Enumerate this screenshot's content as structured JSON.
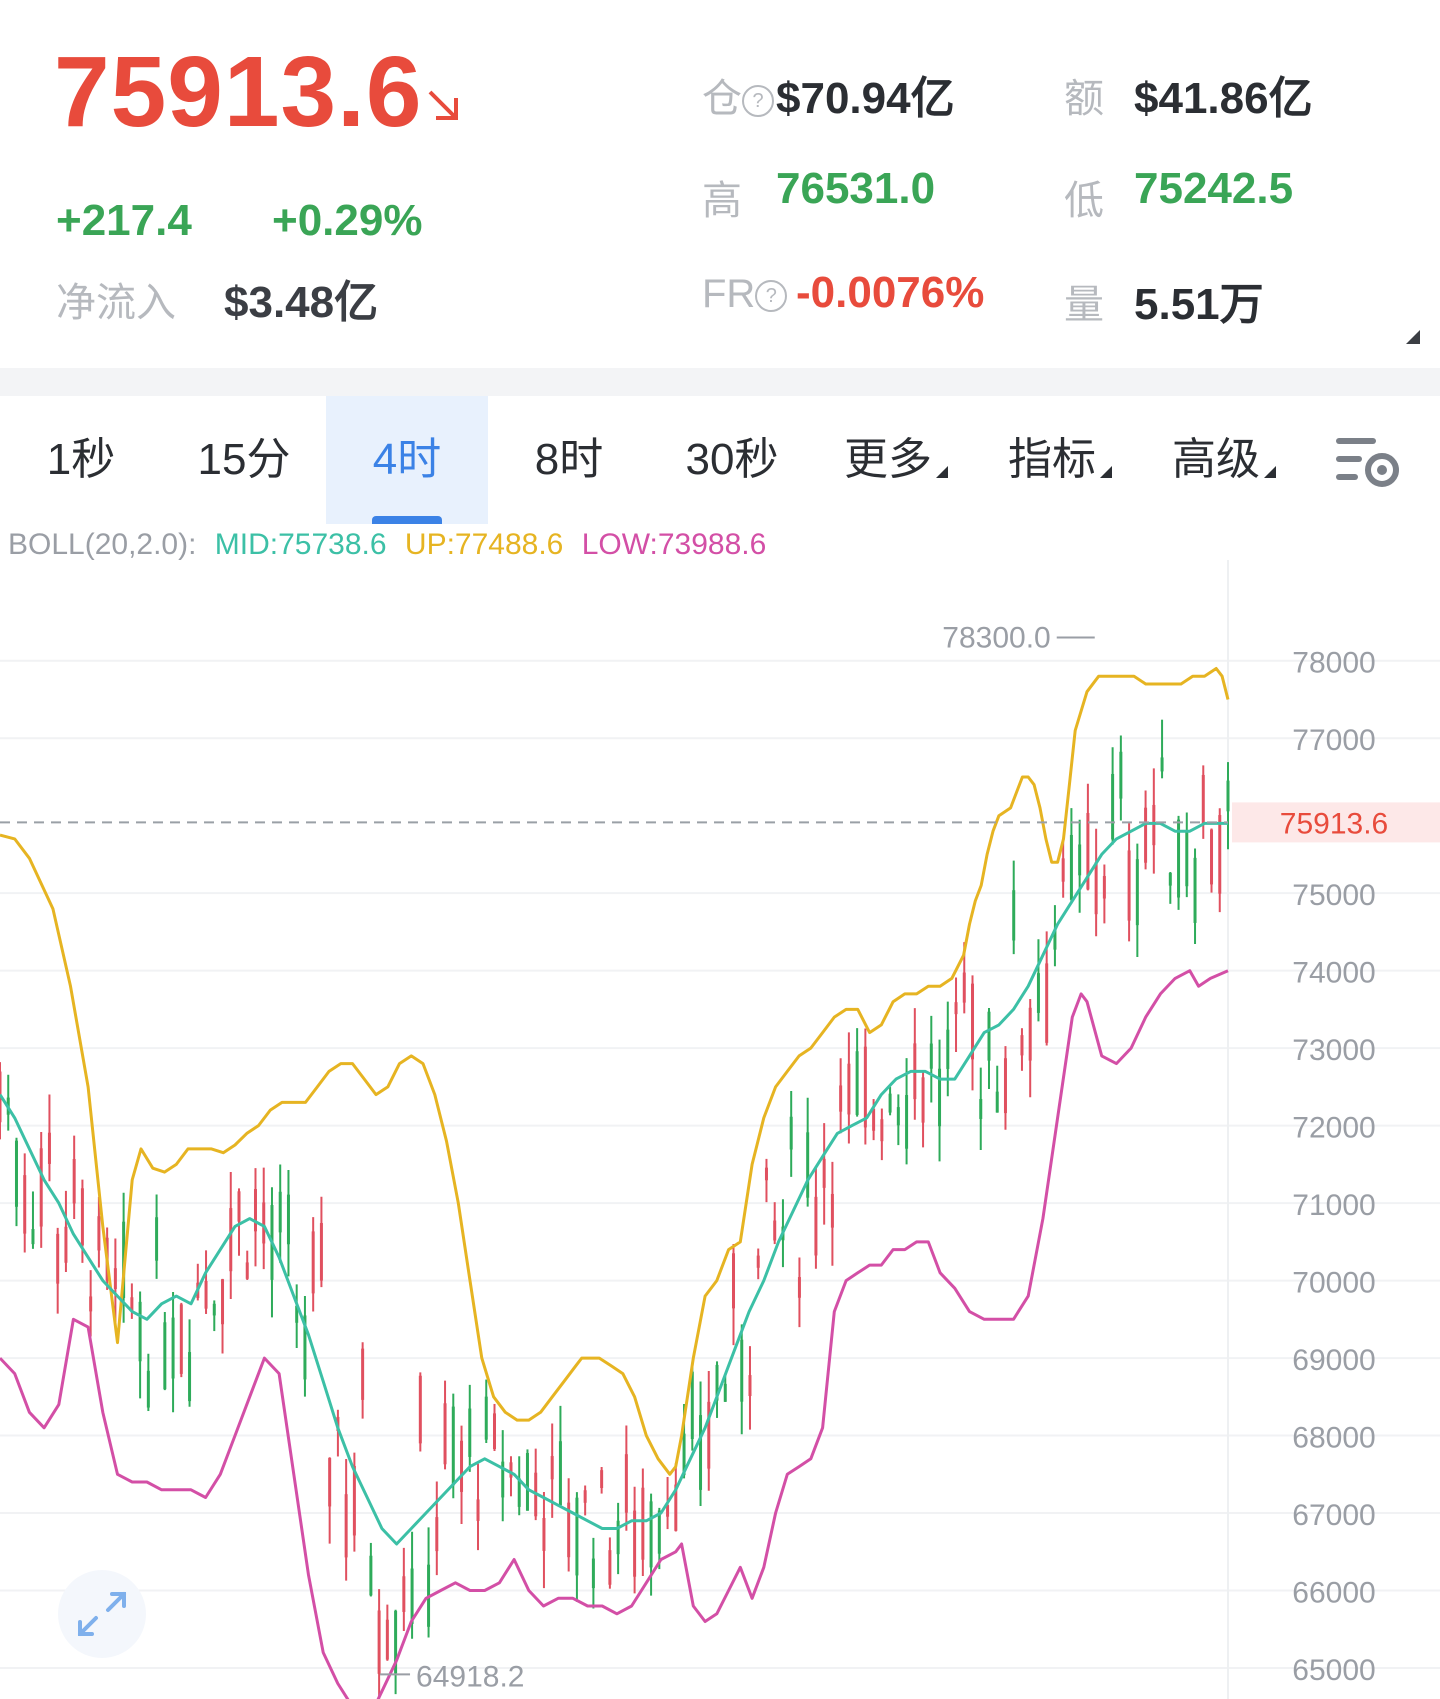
{
  "ticker": {
    "price": "75913.6",
    "change_abs": "+217.4",
    "change_pct": "+0.29%",
    "net_inflow_label": "净流入",
    "net_inflow_value": "$3.48亿",
    "direction_icon": "down-right-arrow-icon",
    "colors": {
      "up": "#3aa556",
      "down": "#e84b3c",
      "label": "#b6b9be"
    }
  },
  "stats": {
    "open_interest_label": "仓",
    "open_interest_value": "$70.94亿",
    "turnover_label": "额",
    "turnover_value": "$41.86亿",
    "high_label": "高",
    "high_value": "76531.0",
    "low_label": "低",
    "low_value": "75242.5",
    "funding_label": "FR",
    "funding_value": "-0.0076%",
    "volume_label": "量",
    "volume_value": "5.51万"
  },
  "tabs": [
    {
      "label": "1秒",
      "active": false
    },
    {
      "label": "15分",
      "active": false
    },
    {
      "label": "4时",
      "active": true
    },
    {
      "label": "8时",
      "active": false
    },
    {
      "label": "30秒",
      "active": false
    },
    {
      "label": "更多",
      "active": false,
      "dropdown": true
    },
    {
      "label": "指标",
      "active": false,
      "dropdown": true
    },
    {
      "label": "高级",
      "active": false,
      "dropdown": true
    }
  ],
  "boll": {
    "params": "BOLL(20,2.0):",
    "mid": "MID:75738.6",
    "up": "UP:77488.6",
    "low": "LOW:73988.6",
    "colors": {
      "params": "#9a9ea5",
      "mid": "#3cc0a6",
      "up": "#e6b422",
      "low": "#d34fa6"
    }
  },
  "chart_data": {
    "type": "candlestick",
    "y_ticks": [
      78000,
      77000,
      75000,
      74000,
      73000,
      72000,
      71000,
      70000,
      69000,
      68000,
      67000,
      66000,
      65000
    ],
    "ylim": [
      64600,
      79300
    ],
    "current_price": 75913.6,
    "current_price_label": "75913.6",
    "max_marker": {
      "value": 78300.0,
      "label": "78300.0"
    },
    "min_marker": {
      "value": 64918.2,
      "label": "64918.2"
    },
    "colors": {
      "up": "#2eab5a",
      "down": "#e0505f",
      "mid": "#3cc0a6",
      "upper": "#e6b422",
      "lower": "#d34fa6",
      "price_line": "#9aa0a6",
      "price_tag_bg": "#fde8e8",
      "price_tag_text": "#e84b3c"
    },
    "upper_band": [
      [
        0,
        75750
      ],
      [
        5,
        75700
      ],
      [
        10,
        75450
      ],
      [
        18,
        74800
      ],
      [
        24,
        73800
      ],
      [
        30,
        72500
      ],
      [
        35,
        70700
      ],
      [
        40,
        69200
      ],
      [
        45,
        71300
      ],
      [
        48,
        71700
      ],
      [
        52,
        71450
      ],
      [
        56,
        71400
      ],
      [
        60,
        71500
      ],
      [
        64,
        71700
      ],
      [
        68,
        71700
      ],
      [
        72,
        71700
      ],
      [
        76,
        71650
      ],
      [
        80,
        71750
      ],
      [
        84,
        71900
      ],
      [
        88,
        72000
      ],
      [
        92,
        72200
      ],
      [
        96,
        72300
      ],
      [
        100,
        72300
      ],
      [
        104,
        72300
      ],
      [
        108,
        72500
      ],
      [
        112,
        72700
      ],
      [
        116,
        72800
      ],
      [
        120,
        72800
      ],
      [
        124,
        72600
      ],
      [
        128,
        72400
      ],
      [
        132,
        72500
      ],
      [
        136,
        72800
      ],
      [
        140,
        72900
      ],
      [
        144,
        72800
      ],
      [
        148,
        72400
      ],
      [
        152,
        71800
      ],
      [
        156,
        71000
      ],
      [
        160,
        70000
      ],
      [
        164,
        69000
      ],
      [
        168,
        68500
      ],
      [
        172,
        68300
      ],
      [
        176,
        68200
      ],
      [
        180,
        68200
      ],
      [
        184,
        68300
      ],
      [
        188,
        68500
      ],
      [
        192,
        68700
      ],
      [
        196,
        68900
      ],
      [
        198,
        69000
      ],
      [
        200,
        69000
      ],
      [
        204,
        69000
      ],
      [
        208,
        68900
      ],
      [
        212,
        68800
      ],
      [
        216,
        68500
      ],
      [
        220,
        68000
      ],
      [
        224,
        67700
      ],
      [
        228,
        67500
      ],
      [
        230,
        67600
      ],
      [
        232,
        68000
      ],
      [
        236,
        69000
      ],
      [
        240,
        69800
      ],
      [
        244,
        70000
      ],
      [
        248,
        70400
      ],
      [
        252,
        70500
      ],
      [
        256,
        71500
      ],
      [
        260,
        72100
      ],
      [
        264,
        72500
      ],
      [
        268,
        72700
      ],
      [
        272,
        72900
      ],
      [
        276,
        73000
      ],
      [
        280,
        73200
      ],
      [
        284,
        73400
      ],
      [
        288,
        73500
      ],
      [
        292,
        73500
      ],
      [
        296,
        73200
      ],
      [
        300,
        73300
      ],
      [
        304,
        73600
      ],
      [
        308,
        73700
      ],
      [
        312,
        73700
      ],
      [
        316,
        73800
      ],
      [
        320,
        73800
      ],
      [
        324,
        73900
      ],
      [
        328,
        74200
      ],
      [
        330,
        74600
      ],
      [
        332,
        74900
      ],
      [
        334,
        75100
      ],
      [
        336,
        75500
      ],
      [
        338,
        75800
      ],
      [
        340,
        76000
      ],
      [
        344,
        76100
      ],
      [
        346,
        76300
      ],
      [
        348,
        76500
      ],
      [
        350,
        76500
      ],
      [
        352,
        76400
      ],
      [
        354,
        76100
      ],
      [
        356,
        75700
      ],
      [
        358,
        75400
      ],
      [
        360,
        75400
      ],
      [
        362,
        75700
      ],
      [
        364,
        76400
      ],
      [
        366,
        77100
      ],
      [
        370,
        77600
      ],
      [
        374,
        77800
      ],
      [
        378,
        77800
      ],
      [
        382,
        77800
      ],
      [
        386,
        77800
      ],
      [
        390,
        77700
      ],
      [
        394,
        77700
      ],
      [
        398,
        77700
      ],
      [
        402,
        77700
      ],
      [
        406,
        77800
      ],
      [
        410,
        77800
      ],
      [
        414,
        77900
      ],
      [
        416,
        77800
      ],
      [
        418,
        77500
      ]
    ],
    "mid_band": [
      [
        0,
        72400
      ],
      [
        5,
        72100
      ],
      [
        10,
        71700
      ],
      [
        15,
        71300
      ],
      [
        20,
        71000
      ],
      [
        25,
        70600
      ],
      [
        30,
        70300
      ],
      [
        35,
        70000
      ],
      [
        40,
        69800
      ],
      [
        45,
        69600
      ],
      [
        50,
        69500
      ],
      [
        55,
        69700
      ],
      [
        60,
        69800
      ],
      [
        65,
        69700
      ],
      [
        70,
        70100
      ],
      [
        75,
        70400
      ],
      [
        80,
        70700
      ],
      [
        85,
        70800
      ],
      [
        90,
        70700
      ],
      [
        95,
        70300
      ],
      [
        100,
        69800
      ],
      [
        105,
        69300
      ],
      [
        110,
        68700
      ],
      [
        115,
        68100
      ],
      [
        120,
        67600
      ],
      [
        125,
        67200
      ],
      [
        130,
        66800
      ],
      [
        135,
        66600
      ],
      [
        140,
        66800
      ],
      [
        145,
        67000
      ],
      [
        150,
        67200
      ],
      [
        155,
        67400
      ],
      [
        160,
        67600
      ],
      [
        165,
        67700
      ],
      [
        170,
        67600
      ],
      [
        175,
        67500
      ],
      [
        180,
        67300
      ],
      [
        185,
        67200
      ],
      [
        190,
        67100
      ],
      [
        195,
        67000
      ],
      [
        200,
        66900
      ],
      [
        205,
        66800
      ],
      [
        210,
        66800
      ],
      [
        215,
        66900
      ],
      [
        220,
        66900
      ],
      [
        225,
        67000
      ],
      [
        230,
        67300
      ],
      [
        235,
        67700
      ],
      [
        240,
        68100
      ],
      [
        245,
        68600
      ],
      [
        250,
        69100
      ],
      [
        255,
        69600
      ],
      [
        260,
        70000
      ],
      [
        265,
        70500
      ],
      [
        270,
        70900
      ],
      [
        275,
        71300
      ],
      [
        280,
        71600
      ],
      [
        285,
        71900
      ],
      [
        290,
        72000
      ],
      [
        295,
        72100
      ],
      [
        300,
        72400
      ],
      [
        305,
        72600
      ],
      [
        310,
        72700
      ],
      [
        315,
        72700
      ],
      [
        320,
        72600
      ],
      [
        325,
        72600
      ],
      [
        330,
        72900
      ],
      [
        335,
        73200
      ],
      [
        340,
        73300
      ],
      [
        345,
        73500
      ],
      [
        350,
        73800
      ],
      [
        355,
        74200
      ],
      [
        360,
        74600
      ],
      [
        365,
        74900
      ],
      [
        370,
        75200
      ],
      [
        375,
        75500
      ],
      [
        380,
        75700
      ],
      [
        385,
        75800
      ],
      [
        390,
        75900
      ],
      [
        395,
        75900
      ],
      [
        400,
        75800
      ],
      [
        405,
        75800
      ],
      [
        410,
        75900
      ],
      [
        415,
        75900
      ],
      [
        418,
        75900
      ]
    ],
    "lower_band": [
      [
        0,
        69000
      ],
      [
        5,
        68800
      ],
      [
        10,
        68300
      ],
      [
        15,
        68100
      ],
      [
        20,
        68400
      ],
      [
        25,
        69500
      ],
      [
        30,
        69400
      ],
      [
        35,
        68300
      ],
      [
        40,
        67500
      ],
      [
        45,
        67400
      ],
      [
        50,
        67400
      ],
      [
        55,
        67300
      ],
      [
        60,
        67300
      ],
      [
        65,
        67300
      ],
      [
        70,
        67200
      ],
      [
        75,
        67500
      ],
      [
        80,
        68000
      ],
      [
        85,
        68500
      ],
      [
        90,
        69000
      ],
      [
        95,
        68800
      ],
      [
        100,
        67500
      ],
      [
        105,
        66200
      ],
      [
        110,
        65200
      ],
      [
        115,
        64800
      ],
      [
        120,
        64500
      ],
      [
        125,
        64300
      ],
      [
        130,
        64700
      ],
      [
        135,
        65100
      ],
      [
        140,
        65600
      ],
      [
        145,
        65900
      ],
      [
        150,
        66000
      ],
      [
        155,
        66100
      ],
      [
        160,
        66000
      ],
      [
        165,
        66000
      ],
      [
        170,
        66100
      ],
      [
        175,
        66400
      ],
      [
        180,
        66000
      ],
      [
        185,
        65800
      ],
      [
        190,
        65900
      ],
      [
        195,
        65900
      ],
      [
        200,
        65800
      ],
      [
        205,
        65800
      ],
      [
        210,
        65700
      ],
      [
        215,
        65800
      ],
      [
        220,
        66100
      ],
      [
        225,
        66400
      ],
      [
        230,
        66500
      ],
      [
        232,
        66600
      ],
      [
        236,
        65800
      ],
      [
        240,
        65600
      ],
      [
        244,
        65700
      ],
      [
        248,
        66000
      ],
      [
        252,
        66300
      ],
      [
        256,
        65900
      ],
      [
        260,
        66300
      ],
      [
        264,
        67000
      ],
      [
        268,
        67500
      ],
      [
        272,
        67600
      ],
      [
        276,
        67700
      ],
      [
        280,
        68100
      ],
      [
        284,
        69600
      ],
      [
        288,
        70000
      ],
      [
        292,
        70100
      ],
      [
        296,
        70200
      ],
      [
        300,
        70200
      ],
      [
        304,
        70400
      ],
      [
        308,
        70400
      ],
      [
        312,
        70500
      ],
      [
        316,
        70500
      ],
      [
        320,
        70100
      ],
      [
        325,
        69900
      ],
      [
        330,
        69600
      ],
      [
        335,
        69500
      ],
      [
        340,
        69500
      ],
      [
        345,
        69500
      ],
      [
        350,
        69800
      ],
      [
        355,
        70800
      ],
      [
        360,
        72100
      ],
      [
        365,
        73400
      ],
      [
        368,
        73700
      ],
      [
        370,
        73600
      ],
      [
        375,
        72900
      ],
      [
        380,
        72800
      ],
      [
        385,
        73000
      ],
      [
        390,
        73400
      ],
      [
        395,
        73700
      ],
      [
        400,
        73900
      ],
      [
        405,
        74000
      ],
      [
        408,
        73800
      ],
      [
        412,
        73900
      ],
      [
        418,
        74000
      ]
    ],
    "candle_count": 150
  }
}
